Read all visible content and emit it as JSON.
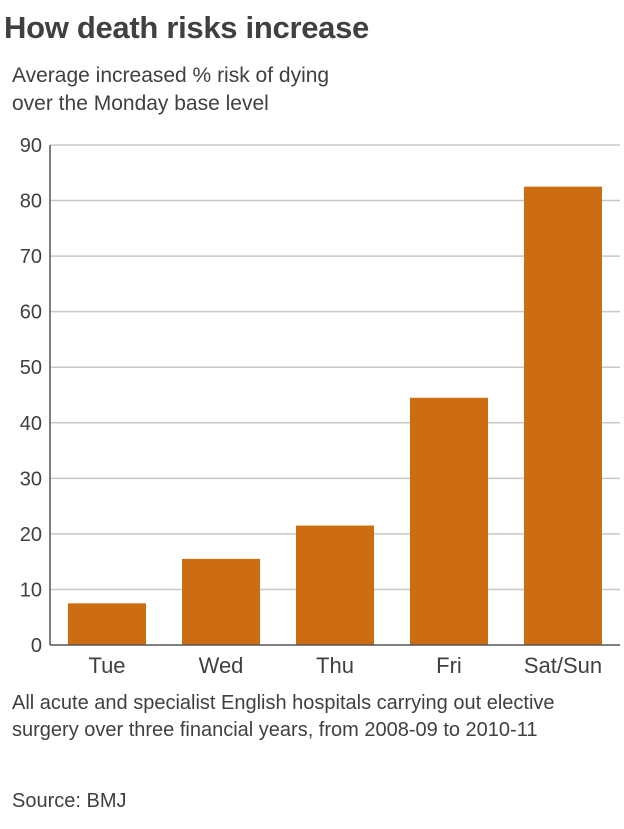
{
  "header": {
    "title": "How death risks increase",
    "subtitle": "Average increased % risk of dying\nover the Monday base level"
  },
  "footer": {
    "note": "All acute and specialist English hospitals carrying out elective surgery over three financial years, from 2008-09 to 2010-11",
    "source": "Source: BMJ"
  },
  "colors": {
    "bar": "#cc6d12",
    "grid": "#c8c8c8",
    "axis": "#555555",
    "text": "#404040"
  },
  "chart_data": {
    "type": "bar",
    "title": "How death risks increase",
    "subtitle": "Average increased % risk of dying over the Monday base level",
    "categories": [
      "Tue",
      "Wed",
      "Thu",
      "Fri",
      "Sat/Sun"
    ],
    "values": [
      7.5,
      15.5,
      21.5,
      44.5,
      82.5
    ],
    "ylim": [
      0,
      90
    ],
    "yticks": [
      0,
      10,
      20,
      30,
      40,
      50,
      60,
      70,
      80,
      90
    ],
    "xlabel": "",
    "ylabel": "",
    "grid": true,
    "legend": "none"
  }
}
